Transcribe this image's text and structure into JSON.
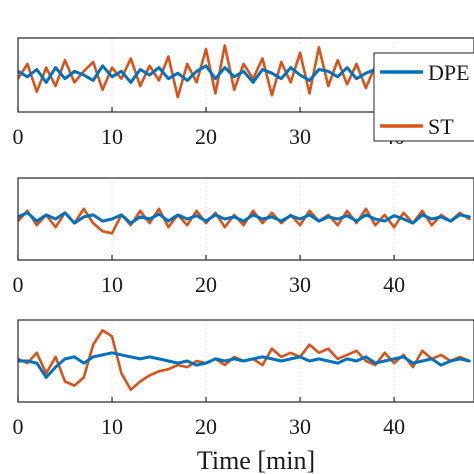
{
  "chart_data": {
    "type": "line",
    "xlabel": "Time [min]",
    "x_ticks": [
      0,
      10,
      20,
      30,
      40
    ],
    "xlim": [
      0,
      48.5
    ],
    "legend": {
      "placement": "top-right",
      "entries": [
        {
          "name": "DPE",
          "color": "#0072BD"
        },
        {
          "name": "ST",
          "color": "#D95319"
        }
      ]
    },
    "grid": true,
    "panels": [
      {
        "ylim": [
          -1,
          1
        ],
        "series": [
          {
            "name": "DPE",
            "color": "#0072BD",
            "x": [
              0,
              1,
              2,
              3,
              4,
              5,
              6,
              7,
              8,
              9,
              10,
              11,
              12,
              13,
              14,
              15,
              16,
              17,
              18,
              19,
              20,
              21,
              22,
              23,
              24,
              25,
              26,
              27,
              28,
              29,
              30,
              31,
              32,
              33,
              34,
              35,
              36,
              37,
              38,
              39,
              40,
              41,
              42,
              43,
              44,
              45,
              46,
              47,
              48
            ],
            "y": [
              0.1,
              -0.05,
              0.15,
              -0.2,
              0.2,
              -0.1,
              0.1,
              0.0,
              -0.15,
              0.25,
              -0.05,
              0.1,
              -0.2,
              0.15,
              0.0,
              0.2,
              -0.1,
              0.05,
              -0.15,
              0.1,
              0.25,
              -0.1,
              0.2,
              -0.05,
              0.1,
              -0.2,
              0.15,
              0.05,
              -0.1,
              0.2,
              0.0,
              -0.15,
              0.15,
              0.1,
              -0.05,
              0.2,
              -0.1,
              0.05,
              0.15,
              -0.1,
              0.1,
              0.0,
              -0.05,
              0.15,
              0.05,
              -0.1,
              0.1,
              0.0,
              0.05
            ]
          },
          {
            "name": "ST",
            "color": "#D95319",
            "x": [
              0,
              1,
              2,
              3,
              4,
              5,
              6,
              7,
              8,
              9,
              10,
              11,
              12,
              13,
              14,
              15,
              16,
              17,
              18,
              19,
              20,
              21,
              22,
              23,
              24,
              25,
              26,
              27,
              28,
              29,
              30,
              31,
              32,
              33,
              34,
              35,
              36,
              37,
              38,
              39,
              40,
              41,
              42,
              43,
              44,
              45,
              46,
              47,
              48
            ],
            "y": [
              -0.1,
              0.3,
              -0.45,
              0.2,
              -0.3,
              0.4,
              -0.2,
              0.1,
              0.35,
              -0.4,
              0.2,
              -0.1,
              0.45,
              -0.3,
              0.25,
              -0.15,
              0.5,
              -0.6,
              0.3,
              -0.2,
              0.7,
              -0.5,
              0.8,
              -0.4,
              0.3,
              -0.1,
              0.45,
              -0.55,
              0.35,
              -0.2,
              0.6,
              -0.5,
              0.75,
              -0.3,
              0.4,
              -0.25,
              0.3,
              -0.35,
              0.25,
              -0.1,
              0.35,
              -0.2,
              0.3,
              -0.15,
              0.25,
              -0.1,
              0.2,
              -0.15,
              0.1
            ]
          }
        ]
      },
      {
        "ylim": [
          -1,
          1
        ],
        "series": [
          {
            "name": "DPE",
            "color": "#0072BD",
            "x": [
              0,
              1,
              2,
              3,
              4,
              5,
              6,
              7,
              8,
              9,
              10,
              11,
              12,
              13,
              14,
              15,
              16,
              17,
              18,
              19,
              20,
              21,
              22,
              23,
              24,
              25,
              26,
              27,
              28,
              29,
              30,
              31,
              32,
              33,
              34,
              35,
              36,
              37,
              38,
              39,
              40,
              41,
              42,
              43,
              44,
              45,
              46,
              47,
              48
            ],
            "y": [
              0.05,
              0.15,
              -0.05,
              0.1,
              0.0,
              0.15,
              -0.1,
              0.05,
              0.1,
              -0.05,
              0.0,
              0.1,
              -0.1,
              0.05,
              0.0,
              0.12,
              -0.05,
              0.1,
              0.0,
              0.08,
              -0.05,
              0.1,
              0.0,
              0.05,
              -0.05,
              0.1,
              0.0,
              0.05,
              -0.05,
              0.08,
              0.0,
              0.1,
              -0.05,
              0.05,
              0.0,
              0.08,
              -0.05,
              0.1,
              0.0,
              -0.05,
              0.08,
              0.0,
              -0.1,
              0.1,
              0.0,
              0.05,
              -0.05,
              0.1,
              0.05
            ]
          },
          {
            "name": "ST",
            "color": "#D95319",
            "x": [
              0,
              1,
              2,
              3,
              4,
              5,
              6,
              7,
              8,
              9,
              10,
              11,
              12,
              13,
              14,
              15,
              16,
              17,
              18,
              19,
              20,
              21,
              22,
              23,
              24,
              25,
              26,
              27,
              28,
              29,
              30,
              31,
              32,
              33,
              34,
              35,
              36,
              37,
              38,
              39,
              40,
              41,
              42,
              43,
              44,
              45,
              46,
              47,
              48
            ],
            "y": [
              -0.05,
              0.2,
              -0.15,
              0.1,
              -0.2,
              0.15,
              -0.1,
              0.25,
              -0.1,
              -0.3,
              -0.35,
              0.1,
              -0.15,
              0.2,
              -0.1,
              0.25,
              -0.2,
              0.1,
              -0.15,
              0.2,
              -0.1,
              0.15,
              -0.2,
              0.1,
              -0.15,
              0.2,
              -0.1,
              0.15,
              -0.1,
              0.1,
              -0.15,
              0.2,
              -0.05,
              0.1,
              -0.15,
              0.2,
              -0.1,
              0.25,
              -0.15,
              0.1,
              -0.2,
              0.15,
              -0.1,
              0.2,
              -0.15,
              0.1,
              -0.05,
              0.15,
              0.0
            ]
          }
        ]
      },
      {
        "ylim": [
          -1,
          1
        ],
        "series": [
          {
            "name": "DPE",
            "color": "#0072BD",
            "x": [
              0,
              1,
              2,
              3,
              4,
              5,
              6,
              7,
              8,
              9,
              10,
              11,
              12,
              13,
              14,
              15,
              16,
              17,
              18,
              19,
              20,
              21,
              22,
              23,
              24,
              25,
              26,
              27,
              28,
              29,
              30,
              31,
              32,
              33,
              34,
              35,
              36,
              37,
              38,
              39,
              40,
              41,
              42,
              43,
              44,
              45,
              46,
              47,
              48
            ],
            "y": [
              0.0,
              0.0,
              -0.05,
              -0.4,
              -0.15,
              0.05,
              0.1,
              -0.05,
              0.1,
              0.15,
              0.2,
              0.15,
              0.1,
              0.05,
              0.1,
              0.05,
              0.0,
              -0.05,
              0.0,
              -0.1,
              -0.05,
              0.05,
              0.0,
              0.05,
              0.0,
              0.05,
              0.1,
              0.05,
              0.0,
              0.05,
              0.1,
              0.0,
              0.05,
              0.0,
              -0.05,
              0.05,
              0.0,
              0.1,
              -0.05,
              0.0,
              0.05,
              0.1,
              -0.05,
              0.0,
              0.05,
              -0.1,
              0.0,
              0.05,
              0.0
            ]
          },
          {
            "name": "ST",
            "color": "#D95319",
            "x": [
              0,
              1,
              2,
              3,
              4,
              5,
              6,
              7,
              8,
              9,
              10,
              11,
              12,
              13,
              14,
              15,
              16,
              17,
              18,
              19,
              20,
              21,
              22,
              23,
              24,
              25,
              26,
              27,
              28,
              29,
              30,
              31,
              32,
              33,
              34,
              35,
              36,
              37,
              38,
              39,
              40,
              41,
              42,
              43,
              44,
              45,
              46,
              47,
              48
            ],
            "y": [
              0.05,
              -0.05,
              0.2,
              -0.3,
              0.1,
              -0.5,
              -0.6,
              -0.4,
              0.4,
              0.75,
              0.6,
              -0.3,
              -0.7,
              -0.5,
              -0.35,
              -0.25,
              -0.2,
              -0.1,
              -0.15,
              0.0,
              -0.05,
              0.05,
              -0.1,
              0.1,
              0.0,
              0.05,
              -0.1,
              0.3,
              0.1,
              0.2,
              0.1,
              0.4,
              0.2,
              0.3,
              0.05,
              0.15,
              0.25,
              0.0,
              -0.1,
              0.2,
              -0.05,
              0.15,
              -0.15,
              0.25,
              0.05,
              0.15,
              0.0,
              0.1,
              0.0
            ]
          }
        ]
      }
    ]
  }
}
